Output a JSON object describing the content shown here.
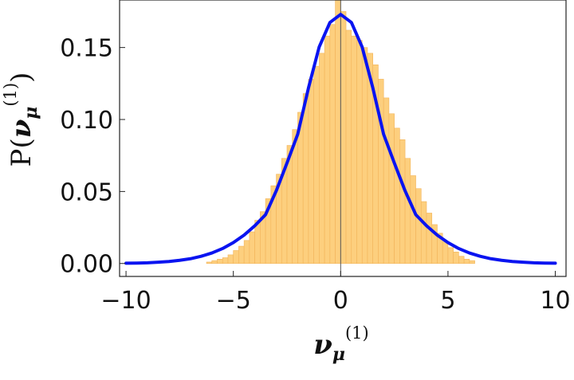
{
  "chart_data": {
    "type": "bar",
    "title": "",
    "xlabel": "ν_μ^(1)",
    "ylabel": "P(ν_μ^(1))",
    "xlim": [
      -10.3,
      10.5
    ],
    "ylim": [
      -0.009,
      0.183
    ],
    "x_ticks": [
      {
        "value": -10,
        "label": "−10"
      },
      {
        "value": -5,
        "label": "−5"
      },
      {
        "value": 0,
        "label": "0"
      },
      {
        "value": 5,
        "label": "5"
      },
      {
        "value": 10,
        "label": "10"
      }
    ],
    "y_ticks": [
      {
        "value": 0.0,
        "label": "0.00"
      },
      {
        "value": 0.05,
        "label": "0.05"
      },
      {
        "value": 0.1,
        "label": "0.10"
      },
      {
        "value": 0.15,
        "label": "0.15"
      }
    ],
    "grid": false,
    "bar_color": "#FDCF7E",
    "bar_edge_color": "#F2B45A",
    "curve_color": "#0A14F0",
    "histogram": {
      "bin_width": 0.25,
      "bin_starts": [
        -6.25,
        -6.0,
        -5.75,
        -5.5,
        -5.25,
        -5.0,
        -4.75,
        -4.5,
        -4.25,
        -4.0,
        -3.75,
        -3.5,
        -3.25,
        -3.0,
        -2.75,
        -2.5,
        -2.25,
        -2.0,
        -1.75,
        -1.5,
        -1.25,
        -1.0,
        -0.75,
        -0.5,
        -0.25,
        0.0,
        0.25,
        0.5,
        0.75,
        1.0,
        1.25,
        1.5,
        1.75,
        2.0,
        2.25,
        2.5,
        2.75,
        3.0,
        3.25,
        3.5,
        3.75,
        4.0,
        4.25,
        4.5,
        4.75,
        5.0,
        5.25,
        5.5,
        5.75,
        6.0
      ],
      "values": [
        0.001,
        0.002,
        0.003,
        0.004,
        0.006,
        0.009,
        0.012,
        0.016,
        0.022,
        0.03,
        0.036,
        0.045,
        0.054,
        0.062,
        0.073,
        0.082,
        0.093,
        0.105,
        0.118,
        0.128,
        0.137,
        0.146,
        0.158,
        0.166,
        0.185,
        0.175,
        0.162,
        0.158,
        0.155,
        0.15,
        0.146,
        0.138,
        0.128,
        0.115,
        0.104,
        0.094,
        0.086,
        0.073,
        0.061,
        0.052,
        0.043,
        0.035,
        0.027,
        0.021,
        0.015,
        0.011,
        0.008,
        0.005,
        0.003,
        0.002
      ]
    },
    "curve": {
      "x": [
        -10,
        -9.5,
        -9,
        -8.5,
        -8,
        -7.5,
        -7,
        -6.5,
        -6,
        -5.5,
        -5,
        -4.5,
        -4,
        -3.5,
        -3,
        -2.5,
        -2,
        -1.5,
        -1,
        -0.5,
        0,
        0.5,
        1,
        1.5,
        2,
        2.5,
        3,
        3.5,
        4,
        4.5,
        5,
        5.5,
        6,
        6.5,
        7,
        7.5,
        8,
        8.5,
        9,
        9.5,
        10
      ],
      "y": [
        0.0002,
        0.0003,
        0.0005,
        0.0009,
        0.0014,
        0.0022,
        0.0033,
        0.005,
        0.0073,
        0.0104,
        0.0145,
        0.0197,
        0.0262,
        0.0339,
        0.0505,
        0.0698,
        0.0898,
        0.1219,
        0.1504,
        0.1674,
        0.173,
        0.1674,
        0.1504,
        0.1219,
        0.0898,
        0.0698,
        0.0505,
        0.0339,
        0.0262,
        0.0197,
        0.0145,
        0.0104,
        0.0073,
        0.005,
        0.0033,
        0.0022,
        0.0014,
        0.0009,
        0.0005,
        0.0003,
        0.0002
      ]
    }
  }
}
